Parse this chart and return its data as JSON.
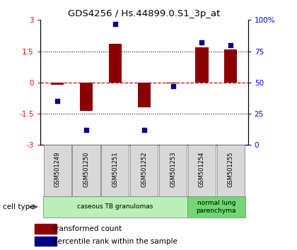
{
  "title": "GDS4256 / Hs.44899.0.S1_3p_at",
  "samples": [
    "GSM501249",
    "GSM501250",
    "GSM501251",
    "GSM501252",
    "GSM501253",
    "GSM501254",
    "GSM501255"
  ],
  "transformed_counts": [
    -0.1,
    -1.35,
    1.85,
    -1.2,
    -0.05,
    1.7,
    1.6
  ],
  "percentile_ranks": [
    35,
    12,
    97,
    12,
    47,
    82,
    80
  ],
  "ylim_left": [
    -3,
    3
  ],
  "yticks_left": [
    -3,
    -1.5,
    0,
    1.5,
    3
  ],
  "yticks_right_pct": [
    0,
    25,
    50,
    75,
    100
  ],
  "bar_color": "#8B0000",
  "dot_color": "#00008B",
  "cell_type_groups": [
    {
      "label": "caseous TB granulomas",
      "samples": [
        0,
        1,
        2,
        3,
        4
      ],
      "color": "#b8f0b8"
    },
    {
      "label": "normal lung\nparenchyma",
      "samples": [
        5,
        6
      ],
      "color": "#70d870"
    }
  ],
  "legend_bar_label": "transformed count",
  "legend_dot_label": "percentile rank within the sample",
  "cell_type_label": "cell type",
  "background_color": "#ffffff",
  "plot_bg_color": "#ffffff",
  "dotted_line_color": "#000000",
  "zero_line_color": "#cc0000",
  "sample_box_color": "#d8d8d8",
  "sample_box_edge": "#888888"
}
